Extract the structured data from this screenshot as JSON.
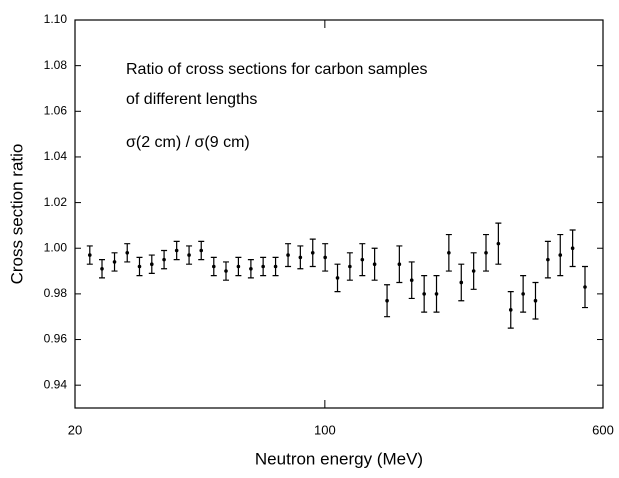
{
  "chart_data": {
    "type": "scatter",
    "annotations": [
      "Ratio of cross sections for carbon samples",
      "of different lengths",
      "σ(2 cm) / σ(9 cm)"
    ],
    "xlabel": "Neutron energy (MeV)",
    "ylabel": "Cross section ratio",
    "x": [
      22.0,
      23.8,
      25.8,
      28.0,
      30.3,
      32.8,
      35.5,
      38.5,
      41.7,
      45.1,
      48.9,
      52.9,
      57.3,
      62.1,
      67.2,
      72.8,
      78.9,
      85.4,
      92.5,
      100.2,
      108.5,
      117.5,
      127.3,
      137.8,
      149.3,
      161.6,
      175.0,
      189.6,
      205.3,
      222.3,
      240.8,
      260.8,
      282.4,
      305.8,
      331.2,
      358.7,
      388.4,
      420.7,
      455.6,
      493.4,
      534.3
    ],
    "values": [
      0.997,
      0.991,
      0.994,
      0.998,
      0.992,
      0.993,
      0.995,
      0.999,
      0.997,
      0.999,
      0.992,
      0.99,
      0.992,
      0.991,
      0.992,
      0.992,
      0.997,
      0.996,
      0.998,
      0.996,
      0.987,
      0.992,
      0.995,
      0.993,
      0.977,
      0.993,
      0.986,
      0.98,
      0.98,
      0.998,
      0.985,
      0.99,
      0.998,
      1.002,
      0.973,
      0.98,
      0.977,
      0.995,
      0.997,
      1.0,
      0.983
    ],
    "errors": [
      0.004,
      0.004,
      0.004,
      0.004,
      0.004,
      0.004,
      0.004,
      0.004,
      0.004,
      0.004,
      0.004,
      0.004,
      0.004,
      0.004,
      0.004,
      0.004,
      0.005,
      0.005,
      0.006,
      0.006,
      0.006,
      0.006,
      0.007,
      0.007,
      0.007,
      0.008,
      0.008,
      0.008,
      0.008,
      0.008,
      0.008,
      0.008,
      0.008,
      0.009,
      0.008,
      0.008,
      0.008,
      0.008,
      0.009,
      0.008,
      0.009
    ],
    "color": "#000000",
    "xscale": "log",
    "xlim": [
      20,
      600
    ],
    "xticks": [
      20,
      100,
      600
    ],
    "ylim": [
      0.93,
      1.1
    ],
    "yticks": [
      0.94,
      0.96,
      0.98,
      {
        "value": 1.0,
        "label": "1.00"
      },
      1.02,
      1.04,
      1.06,
      1.08,
      {
        "value": 1.1,
        "label": "1.10"
      }
    ]
  }
}
